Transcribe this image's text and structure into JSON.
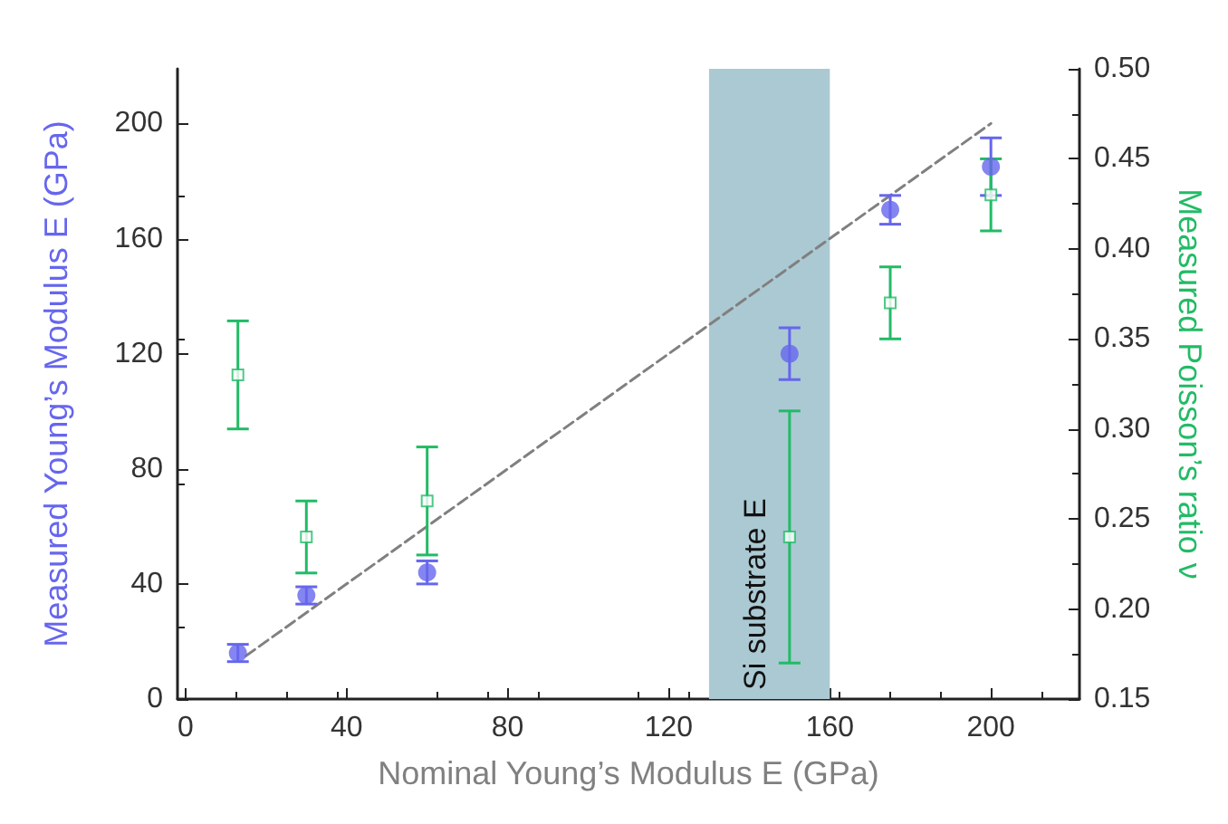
{
  "chart_data": {
    "type": "scatter",
    "xlabel": "Nominal Young’s Modulus E (GPa)",
    "ylabel": "Measured Young’s Modulus E (GPa)",
    "y2label": "Measured Poisson’s ratio ν",
    "xlim": [
      -2,
      222
    ],
    "xticks": [
      0,
      40,
      80,
      120,
      160,
      200
    ],
    "ylim": [
      0,
      219
    ],
    "yticks": [
      0,
      40,
      80,
      120,
      160,
      200
    ],
    "y2lim": [
      0.15,
      0.5
    ],
    "y2ticks": [
      {
        "value": 0.15,
        "label": "0.15"
      },
      {
        "value": 0.2,
        "label": "0.20"
      },
      {
        "value": 0.25,
        "label": "0.25"
      },
      {
        "value": 0.3,
        "label": "0.30"
      },
      {
        "value": 0.35,
        "label": "0.35"
      },
      {
        "value": 0.4,
        "label": "0.40"
      },
      {
        "value": 0.45,
        "label": "0.45"
      },
      {
        "value": 0.5,
        "label": "0.50"
      }
    ],
    "grid": false,
    "series": [
      {
        "color": "#6666ee",
        "marker": "circle",
        "x": [
          13,
          30,
          60,
          150,
          175,
          200
        ],
        "values": [
          16,
          36,
          44,
          120,
          170,
          185
        ],
        "errors": [
          3,
          3,
          4,
          9,
          5,
          10
        ]
      },
      {
        "axis": "y2",
        "color": "#22bb66",
        "marker": "square",
        "x": [
          13,
          30,
          60,
          150,
          175,
          200
        ],
        "values": [
          0.33,
          0.24,
          0.26,
          0.24,
          0.37,
          0.43
        ],
        "errors": [
          [
            0.3,
            0.36
          ],
          [
            0.22,
            0.26
          ],
          [
            0.23,
            0.29
          ],
          [
            0.17,
            0.31
          ],
          [
            0.35,
            0.39
          ],
          [
            0.41,
            0.45
          ]
        ]
      },
      {
        "type": "line",
        "color": "#808080",
        "marker": "none",
        "line_style": "dashed",
        "x": [
          15,
          200
        ],
        "values": [
          15,
          200
        ]
      }
    ],
    "bands": [
      {
        "axis": "x",
        "from": 130,
        "to": 160,
        "label": "Si substrate E",
        "color": "#abc9d3"
      }
    ]
  }
}
